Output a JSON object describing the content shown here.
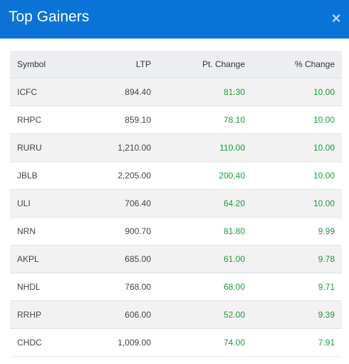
{
  "header": {
    "title": "Top Gainers",
    "close_icon": "close-icon",
    "background": "#0a74d6"
  },
  "table": {
    "columns": [
      "Symbol",
      "LTP",
      "Pt. Change",
      "% Change"
    ],
    "positive_color": "#1a9c3b",
    "rows": [
      {
        "symbol": "ICFC",
        "ltp": "894.40",
        "pt_change": "81.30",
        "pct_change": "10.00"
      },
      {
        "symbol": "RHPC",
        "ltp": "859.10",
        "pt_change": "78.10",
        "pct_change": "10.00"
      },
      {
        "symbol": "RURU",
        "ltp": "1,210.00",
        "pt_change": "110.00",
        "pct_change": "10.00"
      },
      {
        "symbol": "JBLB",
        "ltp": "2,205.00",
        "pt_change": "200.40",
        "pct_change": "10.00"
      },
      {
        "symbol": "ULI",
        "ltp": "706.40",
        "pt_change": "64.20",
        "pct_change": "10.00"
      },
      {
        "symbol": "NRN",
        "ltp": "900.70",
        "pt_change": "81.80",
        "pct_change": "9.99"
      },
      {
        "symbol": "AKPL",
        "ltp": "685.00",
        "pt_change": "61.00",
        "pct_change": "9.78"
      },
      {
        "symbol": "NHDL",
        "ltp": "768.00",
        "pt_change": "68.00",
        "pct_change": "9.71"
      },
      {
        "symbol": "RRHP",
        "ltp": "606.00",
        "pt_change": "52.00",
        "pct_change": "9.39"
      },
      {
        "symbol": "CHDC",
        "ltp": "1,009.00",
        "pt_change": "74.00",
        "pct_change": "7.91"
      }
    ]
  }
}
